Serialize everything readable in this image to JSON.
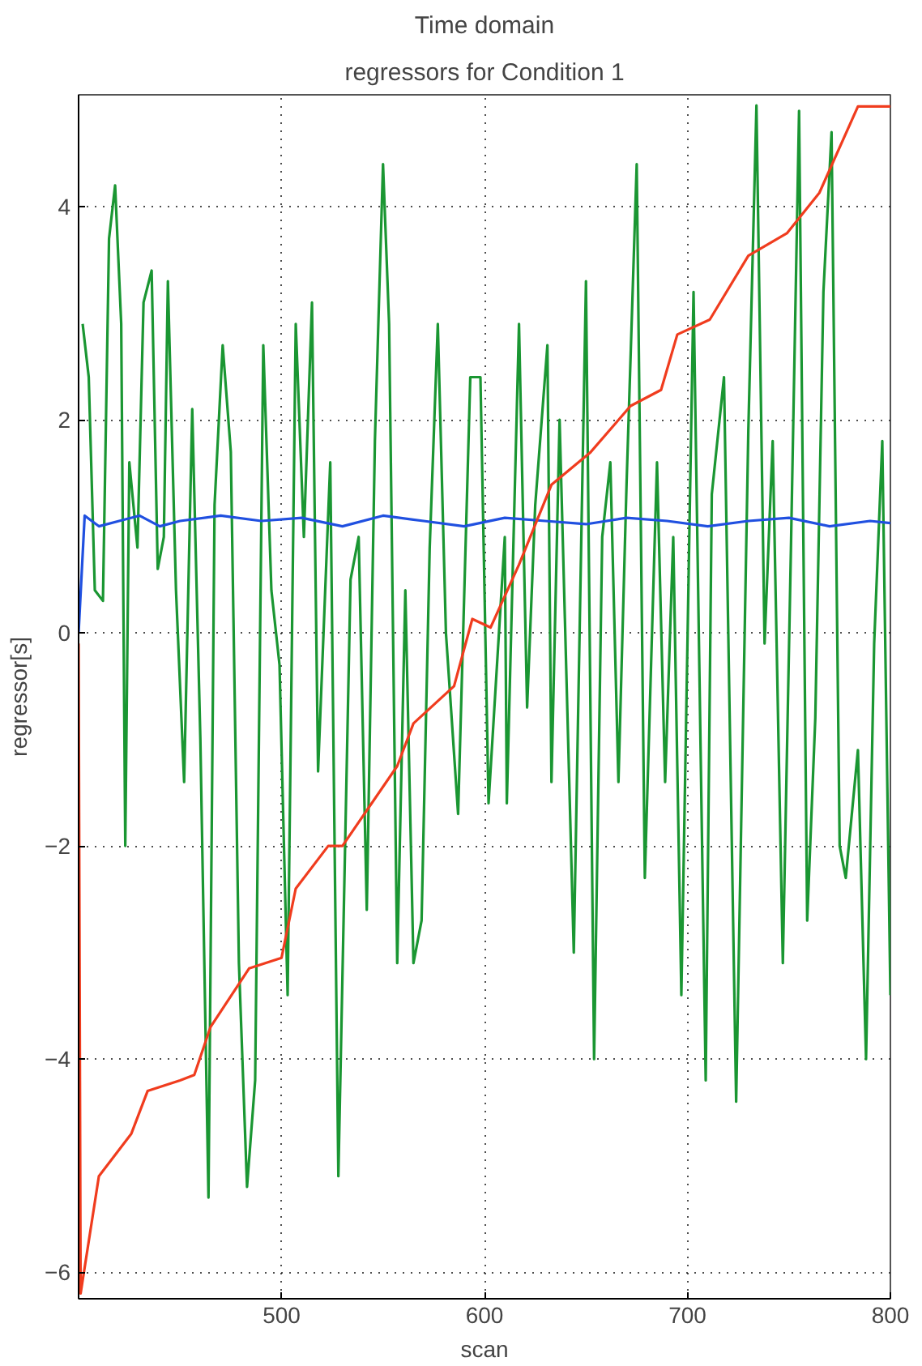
{
  "chart_data": {
    "type": "line",
    "title": "Time domain",
    "subtitle": "regressors for Condition 1",
    "xlabel": "scan",
    "ylabel": "regressor[s]",
    "xlim": [
      400,
      800
    ],
    "xticks": [
      500,
      600,
      700,
      800
    ],
    "ylim": [
      -6.25,
      5.05
    ],
    "yticks": [
      -6,
      -4,
      -2,
      0,
      2,
      4
    ],
    "grid": true,
    "line_style": "solid",
    "series": [
      {
        "color": "#1a9632",
        "x": [
          402,
          405,
          408,
          412,
          415,
          418,
          421,
          423,
          425,
          429,
          432,
          436,
          439,
          442,
          444,
          448,
          452,
          456,
          460,
          464,
          467,
          471,
          475,
          479,
          483,
          487,
          491,
          495,
          499,
          503,
          507,
          511,
          515,
          518,
          524,
          528,
          534,
          538,
          542,
          546,
          550,
          553,
          557,
          561,
          565,
          569,
          573,
          577,
          581,
          587,
          593,
          598,
          602,
          610,
          611,
          617,
          621,
          625,
          631,
          633,
          637,
          644,
          650,
          654,
          658,
          662,
          666,
          670,
          675,
          679,
          685,
          689,
          693,
          697,
          703,
          709,
          712,
          718,
          724,
          730,
          734,
          738,
          742,
          747,
          751,
          755,
          759,
          763,
          767,
          771,
          775,
          778,
          784,
          788,
          792,
          796,
          800
        ],
        "values": [
          2.9,
          2.4,
          0.4,
          0.3,
          3.7,
          4.2,
          2.9,
          -2.0,
          1.6,
          0.8,
          3.1,
          3.4,
          0.6,
          0.9,
          3.3,
          0.4,
          -1.4,
          2.1,
          -1.0,
          -5.3,
          1.2,
          2.7,
          1.7,
          -3.1,
          -5.2,
          -4.2,
          2.7,
          0.4,
          -0.3,
          -3.4,
          2.9,
          0.9,
          3.1,
          -1.3,
          1.6,
          -5.1,
          0.5,
          0.9,
          -2.6,
          1.8,
          4.4,
          2.9,
          -3.1,
          0.4,
          -3.1,
          -2.7,
          0.8,
          2.9,
          0.0,
          -1.7,
          2.4,
          2.4,
          -1.6,
          0.9,
          -1.6,
          2.9,
          -0.7,
          1.2,
          2.7,
          -1.4,
          2.0,
          -3.0,
          3.3,
          -4.0,
          0.9,
          1.6,
          -1.4,
          1.4,
          4.4,
          -2.3,
          1.6,
          -1.4,
          0.9,
          -3.4,
          3.2,
          -4.2,
          1.3,
          2.4,
          -4.4,
          1.9,
          4.95,
          -0.1,
          1.8,
          -3.1,
          0.8,
          4.9,
          -2.7,
          -0.8,
          3.2,
          4.7,
          -2.0,
          -2.3,
          -1.1,
          -4.0,
          -0.1,
          1.8,
          -3.4
        ]
      },
      {
        "color": "#2050e0",
        "x": [
          400,
          403,
          410,
          420,
          430,
          440,
          450,
          470,
          490,
          510,
          530,
          550,
          570,
          590,
          610,
          630,
          650,
          670,
          690,
          710,
          730,
          750,
          770,
          790,
          800
        ],
        "values": [
          0.0,
          1.1,
          1.0,
          1.05,
          1.1,
          1.0,
          1.05,
          1.1,
          1.05,
          1.08,
          1.0,
          1.1,
          1.05,
          1.0,
          1.08,
          1.05,
          1.02,
          1.08,
          1.05,
          1.0,
          1.05,
          1.08,
          1.0,
          1.05,
          1.03
        ]
      },
      {
        "color": "#f03c1e",
        "x": [
          400,
          401,
          410,
          426,
          434,
          450,
          457,
          465,
          484,
          500,
          507,
          523,
          530,
          557,
          565,
          585,
          594,
          603,
          617,
          633,
          652,
          672,
          687,
          695,
          711,
          730,
          749,
          765,
          784,
          800
        ],
        "values": [
          -0.1,
          -6.2,
          -5.1,
          -4.7,
          -4.3,
          -4.2,
          -4.15,
          -3.7,
          -3.15,
          -3.05,
          -2.4,
          -2.0,
          -2.0,
          -1.25,
          -0.85,
          -0.5,
          0.13,
          0.05,
          0.64,
          1.39,
          1.69,
          2.13,
          2.28,
          2.8,
          2.94,
          3.54,
          3.75,
          4.13,
          4.94,
          4.94
        ]
      }
    ]
  }
}
